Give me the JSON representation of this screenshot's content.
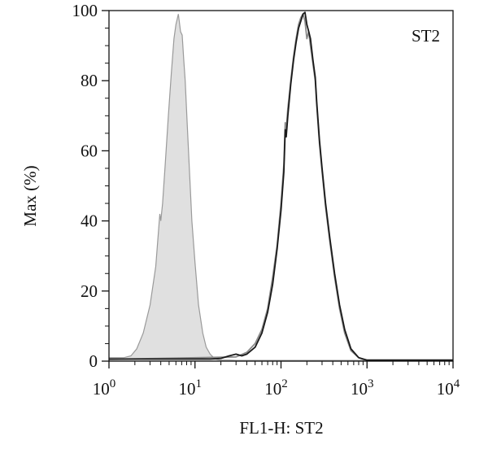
{
  "chart_data": {
    "type": "area",
    "x_scale": "log",
    "xlabel": "FL1-H: ST2",
    "ylabel": "Max (%)",
    "annotation": "ST2",
    "xlim": [
      1,
      10000
    ],
    "ylim": [
      0,
      100
    ],
    "x_ticks": [
      {
        "value": 1,
        "base": "10",
        "exp": "0"
      },
      {
        "value": 10,
        "base": "10",
        "exp": "1"
      },
      {
        "value": 100,
        "base": "10",
        "exp": "2"
      },
      {
        "value": 1000,
        "base": "10",
        "exp": "3"
      },
      {
        "value": 10000,
        "base": "10",
        "exp": "4"
      }
    ],
    "y_ticks": [
      0,
      20,
      40,
      60,
      80,
      100
    ],
    "grid": false,
    "series": [
      {
        "style": "filled",
        "fill": "#e0e0e0",
        "stroke": "#9a9a9a",
        "x": [
          1.0,
          1.5,
          1.8,
          2.1,
          2.5,
          3.0,
          3.5,
          3.9,
          4.0,
          4.2,
          4.5,
          4.9,
          5.3,
          5.7,
          6.0,
          6.4,
          6.8,
          7.1,
          7.4,
          7.7,
          8.1,
          8.6,
          9.2,
          10.0,
          11.0,
          12.3,
          13.5,
          15.0,
          16.5,
          18.0,
          20.0,
          25.0,
          30.0,
          10000
        ],
        "y": [
          1.0,
          1.0,
          1.5,
          3.5,
          8.0,
          16.0,
          27.0,
          42.0,
          40.0,
          45.0,
          56.0,
          70.0,
          82.0,
          92.0,
          96.0,
          99.0,
          94.0,
          93.0,
          86.0,
          80.0,
          68.0,
          55.0,
          40.0,
          28.0,
          16.0,
          8.0,
          4.0,
          2.0,
          1.0,
          0.5,
          0.3,
          0.3,
          0.2,
          0.2
        ]
      },
      {
        "style": "line",
        "stroke": "#8a8a8a",
        "x": [
          1.0,
          30.0,
          40.0,
          50.0,
          60.0,
          70.0,
          80.0,
          90.0,
          100.0,
          108.0,
          112.0,
          115.0,
          120.0,
          130.0,
          140.0,
          150.0,
          160.0,
          170.0,
          180.0,
          190.0,
          200.0,
          210.0,
          220.0,
          235.0,
          250.0,
          260.0,
          280.0,
          300.0,
          330.0,
          370.0,
          420.0,
          480.0,
          550.0,
          650.0,
          800.0,
          1000.0,
          10000
        ],
        "y": [
          0.5,
          1.2,
          2.5,
          5.0,
          9.0,
          15.0,
          24.0,
          33.0,
          45.0,
          56.0,
          68.0,
          66.0,
          72.0,
          80.0,
          87.0,
          92.0,
          96.0,
          98.0,
          99.0,
          97.0,
          92.0,
          94.0,
          90.0,
          85.0,
          80.0,
          73.0,
          62.0,
          54.0,
          44.0,
          34.0,
          24.0,
          15.0,
          8.0,
          3.0,
          1.0,
          0.2,
          0.2
        ]
      },
      {
        "style": "line",
        "stroke": "#1a1a1a",
        "x": [
          1.0,
          15.0,
          20.0,
          25.0,
          30.0,
          35.0,
          40.0,
          50.0,
          60.0,
          70.0,
          80.0,
          90.0,
          100.0,
          108.0,
          112.0,
          115.0,
          120.0,
          130.0,
          140.0,
          150.0,
          160.0,
          170.0,
          180.0,
          190.0,
          200.0,
          210.0,
          220.0,
          235.0,
          250.0,
          260.0,
          280.0,
          300.0,
          330.0,
          370.0,
          420.0,
          480.0,
          550.0,
          650.0,
          800.0,
          1000.0,
          10000
        ],
        "y": [
          0.6,
          0.6,
          0.8,
          1.5,
          2.0,
          1.5,
          2.0,
          4.0,
          8.0,
          14.0,
          22.0,
          32.0,
          43.0,
          54.0,
          66.0,
          64.0,
          70.0,
          79.0,
          86.0,
          91.0,
          95.0,
          97.0,
          99.0,
          99.5,
          96.0,
          94.0,
          92.0,
          86.0,
          81.0,
          74.0,
          63.0,
          55.0,
          45.0,
          35.0,
          25.0,
          16.0,
          9.0,
          3.5,
          1.0,
          0.3,
          0.3
        ]
      }
    ]
  }
}
